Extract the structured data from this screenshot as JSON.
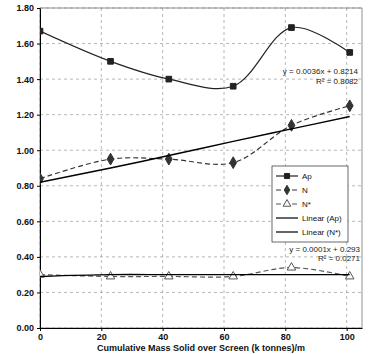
{
  "chart_data": {
    "type": "line",
    "x_label": "Cumulative Mass Solid over Screen (k tonnes)/m",
    "x": [
      0,
      23,
      42,
      63,
      82,
      101
    ],
    "series": [
      {
        "name": "Ap",
        "color": "#222222",
        "marker": "square",
        "line_style": "solid",
        "values": [
          1.67,
          1.5,
          1.4,
          1.36,
          1.69,
          1.55
        ]
      },
      {
        "name": "N",
        "color": "#333333",
        "marker": "diamond",
        "line_style": "dashed",
        "values": [
          0.84,
          0.95,
          0.95,
          0.93,
          1.14,
          1.25
        ]
      },
      {
        "name": "N*",
        "color": "#555555",
        "marker": "triangle",
        "line_style": "dashed",
        "values": [
          0.3,
          0.29,
          0.29,
          0.29,
          0.34,
          0.29
        ]
      },
      {
        "name": "Linear (Ap)",
        "color": "#000000",
        "marker": "none",
        "line_style": "solid",
        "values": [
          0.82,
          0.9,
          0.97,
          1.05,
          1.12,
          1.19
        ]
      },
      {
        "name": "Linear (N*)",
        "color": "#000000",
        "marker": "none",
        "line_style": "solid",
        "values": [
          0.29,
          0.3,
          0.3,
          0.3,
          0.3,
          0.3
        ]
      }
    ],
    "annotations": [
      "y = 0.0036x + 0.8214",
      "R² = 0.8082",
      "y = 0.0001x + 0.293",
      "R² = 0.0271"
    ],
    "xlim": [
      0,
      105
    ],
    "xticks": [
      0,
      20,
      40,
      60,
      80,
      100
    ],
    "ylim": [
      0,
      1.8
    ],
    "yticks": [
      {
        "value": 0,
        "label": "0.00"
      },
      {
        "value": 0.2,
        "label": "0.20"
      },
      {
        "value": 0.4,
        "label": "0.40"
      },
      {
        "value": 0.6,
        "label": "0.60"
      },
      {
        "value": 0.8,
        "label": "0.80"
      },
      {
        "value": 1.0,
        "label": "1.00"
      },
      {
        "value": 1.2,
        "label": "1.20"
      },
      {
        "value": 1.4,
        "label": "1.40"
      },
      {
        "value": 1.6,
        "label": "1.60"
      },
      {
        "value": 1.8,
        "label": "1.80"
      }
    ],
    "grid": true,
    "legend": "right"
  }
}
